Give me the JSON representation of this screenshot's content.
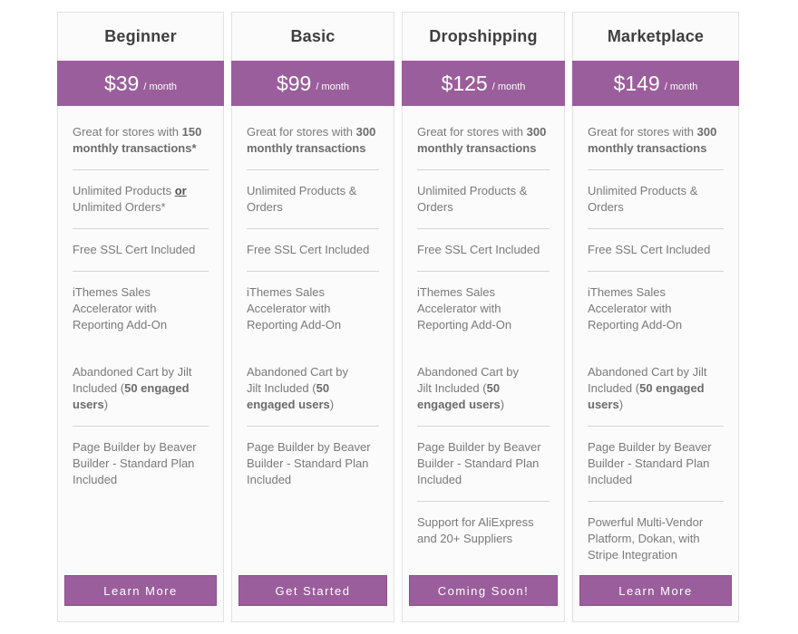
{
  "plans": [
    {
      "name": "Beginner",
      "price": "$39",
      "per": "/ month",
      "features": [
        {
          "pre": "Great for stores with ",
          "bold": "150 monthly transactions*"
        },
        {
          "pre": "Unlimited Products ",
          "under": "or",
          "post": " Unlimited Orders*"
        },
        {
          "pre": "Free SSL Cert Included"
        },
        {
          "pre": "iThemes Sales Accelerator with Reporting Add-On"
        },
        {
          "pre": "Abandoned Cart by Jilt Included (",
          "bold": "50 engaged users",
          "post": ")"
        },
        {
          "pre": "Page Builder by Beaver Builder - Standard Plan Included"
        }
      ],
      "cta": "Learn More"
    },
    {
      "name": "Basic",
      "price": "$99",
      "per": "/ month",
      "features": [
        {
          "pre": "Great for stores with ",
          "bold": "300 monthly transactions"
        },
        {
          "pre": "Unlimited Products & Orders"
        },
        {
          "pre": "Free SSL Cert Included"
        },
        {
          "pre": "iThemes Sales Accelerator with Reporting Add-On"
        },
        {
          "pre": "Abandoned Cart by Jilt Included (",
          "bold": "50 engaged users",
          "post": ")"
        },
        {
          "pre": "Page Builder by Beaver Builder - Standard Plan Included"
        }
      ],
      "cta": "Get Started"
    },
    {
      "name": "Dropshipping",
      "price": "$125",
      "per": "/ month",
      "features": [
        {
          "pre": "Great for stores with ",
          "bold": "300 monthly transactions"
        },
        {
          "pre": "Unlimited Products & Orders"
        },
        {
          "pre": "Free SSL Cert Included"
        },
        {
          "pre": "iThemes Sales Accelerator with Reporting Add-On"
        },
        {
          "pre": "Abandoned Cart by Jilt Included (",
          "bold": "50 engaged users",
          "post": ")"
        },
        {
          "pre": "Page Builder by Beaver Builder - Standard Plan Included"
        },
        {
          "pre": "Support for AliExpress and 20+ Suppliers"
        }
      ],
      "cta": "Coming Soon!"
    },
    {
      "name": "Marketplace",
      "price": "$149",
      "per": "/ month",
      "features": [
        {
          "pre": "Great for stores with ",
          "bold": "300 monthly transactions"
        },
        {
          "pre": "Unlimited Products & Orders"
        },
        {
          "pre": "Free SSL Cert Included"
        },
        {
          "pre": "iThemes Sales Accelerator with Reporting Add-On"
        },
        {
          "pre": "Abandoned Cart by Jilt Included (",
          "bold": "50 engaged users",
          "post": ")"
        },
        {
          "pre": "Page Builder by Beaver Builder - Standard Plan Included"
        },
        {
          "pre": "Powerful Multi-Vendor Platform, Dokan, with Stripe Integration"
        }
      ],
      "cta": "Learn More"
    }
  ],
  "colors": {
    "accent": "#9b5e9c",
    "border": "#e2e2e2",
    "background": "#fbfbfb"
  }
}
